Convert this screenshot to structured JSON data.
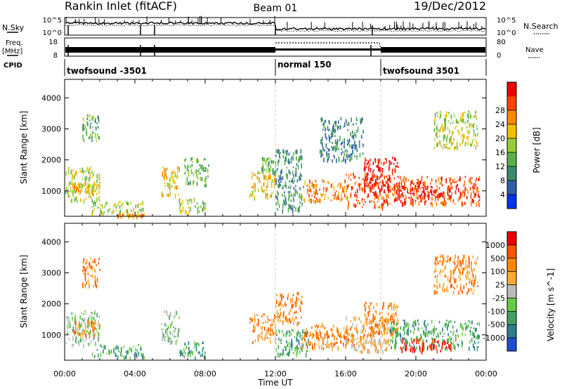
{
  "header": {
    "station": "Rankin Inlet (fitACF)",
    "beam": "Beam 01",
    "date": "19/Dec/2012"
  },
  "left_labels": {
    "nsky": "N.Sky",
    "freq": "Freq.",
    "freq_unit": "[MHz]",
    "cpid": "CPID"
  },
  "right_labels": {
    "nsearch": "N.Search",
    "nave": "Nave"
  },
  "noise_panel": {
    "left_ticks": [
      "10^5",
      "10^0"
    ],
    "right_ticks": [
      "10^5",
      "10^0"
    ]
  },
  "freq_panel": {
    "left_ticks": [
      "18",
      "8"
    ],
    "right_ticks": [
      "80",
      "0"
    ]
  },
  "cpid_segments": [
    {
      "label": "twofsound -3501",
      "start_hour": 0,
      "end_hour": 12
    },
    {
      "label": "normal 150",
      "start_hour": 12,
      "end_hour": 18
    },
    {
      "label": "twofsound 3501",
      "start_hour": 18,
      "end_hour": 24
    }
  ],
  "chart_data": [
    {
      "type": "heatmap",
      "name": "power",
      "ylabel": "Slant Range [km]",
      "xlim": [
        0,
        24
      ],
      "ylim": [
        180,
        4600
      ],
      "y_ticks": [
        1000,
        2000,
        3000,
        4000
      ],
      "colorbar": {
        "label": "Power [dB]",
        "ticks": [
          "4",
          "8",
          "12",
          "16",
          "20",
          "24",
          "28"
        ],
        "colors": [
          "#0033ee",
          "#2f5ea8",
          "#3a8a6a",
          "#55b148",
          "#99cc33",
          "#f3c000",
          "#ff8800",
          "#ff4400",
          "#ee0000"
        ]
      },
      "clusters": [
        {
          "t0": 0.0,
          "t1": 2.0,
          "r0": 700,
          "r1": 1800,
          "level": 4
        },
        {
          "t0": 0.3,
          "t1": 2.0,
          "r0": 1000,
          "r1": 1300,
          "level": 5
        },
        {
          "t0": 1.5,
          "t1": 4.5,
          "r0": 300,
          "r1": 700,
          "level": 4
        },
        {
          "t0": 3.0,
          "t1": 4.6,
          "r0": 180,
          "r1": 300,
          "level": 6
        },
        {
          "t0": 1.0,
          "t1": 2.0,
          "r0": 2600,
          "r1": 3500,
          "level": 3
        },
        {
          "t0": 5.5,
          "t1": 6.5,
          "r0": 800,
          "r1": 1800,
          "level": 5
        },
        {
          "t0": 6.5,
          "t1": 8.0,
          "r0": 300,
          "r1": 800,
          "level": 4
        },
        {
          "t0": 6.8,
          "t1": 8.2,
          "r0": 1200,
          "r1": 2100,
          "level": 3
        },
        {
          "t0": 10.5,
          "t1": 12.0,
          "r0": 800,
          "r1": 1700,
          "level": 5
        },
        {
          "t0": 11.2,
          "t1": 12.0,
          "r0": 1600,
          "r1": 2100,
          "level": 3
        },
        {
          "t0": 12.0,
          "t1": 13.5,
          "r0": 400,
          "r1": 2400,
          "level": 2
        },
        {
          "t0": 13.5,
          "t1": 16.0,
          "r0": 700,
          "r1": 1400,
          "level": 6
        },
        {
          "t0": 16.0,
          "t1": 18.5,
          "r0": 500,
          "r1": 1600,
          "level": 7
        },
        {
          "t0": 17.0,
          "t1": 19.0,
          "r0": 1000,
          "r1": 2100,
          "level": 8
        },
        {
          "t0": 18.5,
          "t1": 23.6,
          "r0": 600,
          "r1": 1500,
          "level": 7
        },
        {
          "t0": 19.0,
          "t1": 22.0,
          "r0": 800,
          "r1": 1200,
          "level": 8
        },
        {
          "t0": 21.0,
          "t1": 23.5,
          "r0": 2400,
          "r1": 3600,
          "level": 4
        },
        {
          "t0": 14.5,
          "t1": 17.0,
          "r0": 2000,
          "r1": 3400,
          "level": 2
        }
      ]
    },
    {
      "type": "heatmap",
      "name": "velocity",
      "ylabel": "Slant Range [km]",
      "xlabel": "Time UT",
      "xlim": [
        0,
        24
      ],
      "ylim": [
        180,
        4600
      ],
      "x_ticks": [
        "00:00",
        "04:00",
        "08:00",
        "12:00",
        "16:00",
        "20:00",
        "00:00"
      ],
      "y_ticks": [
        1000,
        2000,
        3000,
        4000
      ],
      "colorbar": {
        "label": "Velocity [m s^-1]",
        "ticks": [
          "1000",
          "500",
          "100",
          "25",
          "-25",
          "-100",
          "-500",
          "-1000"
        ],
        "colors": [
          "#1f4fd0",
          "#2e7d8a",
          "#44a060",
          "#66cc44",
          "#bbbbbb",
          "#ffaa33",
          "#ff8800",
          "#ff5500",
          "#ee0000"
        ]
      },
      "clusters": [
        {
          "t0": 0.0,
          "t1": 2.0,
          "r0": 700,
          "r1": 1800,
          "level": 3
        },
        {
          "t0": 0.5,
          "t1": 2.0,
          "r0": 1000,
          "r1": 1500,
          "level": 6
        },
        {
          "t0": 1.5,
          "t1": 4.5,
          "r0": 300,
          "r1": 700,
          "level": 2
        },
        {
          "t0": 1.0,
          "t1": 2.0,
          "r0": 2600,
          "r1": 3500,
          "level": 6
        },
        {
          "t0": 5.5,
          "t1": 6.5,
          "r0": 800,
          "r1": 1800,
          "level": 3
        },
        {
          "t0": 6.5,
          "t1": 8.0,
          "r0": 300,
          "r1": 800,
          "level": 2
        },
        {
          "t0": 10.5,
          "t1": 12.0,
          "r0": 800,
          "r1": 1700,
          "level": 6
        },
        {
          "t0": 12.0,
          "t1": 13.5,
          "r0": 1400,
          "r1": 2400,
          "level": 6
        },
        {
          "t0": 12.0,
          "t1": 14.0,
          "r0": 400,
          "r1": 1200,
          "level": 2
        },
        {
          "t0": 13.5,
          "t1": 16.5,
          "r0": 600,
          "r1": 1400,
          "level": 6
        },
        {
          "t0": 16.0,
          "t1": 18.5,
          "r0": 500,
          "r1": 1600,
          "level": 5
        },
        {
          "t0": 17.0,
          "t1": 19.0,
          "r0": 1000,
          "r1": 2100,
          "level": 6
        },
        {
          "t0": 18.5,
          "t1": 23.6,
          "r0": 600,
          "r1": 1500,
          "level": 2
        },
        {
          "t0": 19.0,
          "t1": 22.0,
          "r0": 500,
          "r1": 900,
          "level": 8
        },
        {
          "t0": 21.0,
          "t1": 23.5,
          "r0": 2400,
          "r1": 3600,
          "level": 6
        }
      ]
    }
  ]
}
